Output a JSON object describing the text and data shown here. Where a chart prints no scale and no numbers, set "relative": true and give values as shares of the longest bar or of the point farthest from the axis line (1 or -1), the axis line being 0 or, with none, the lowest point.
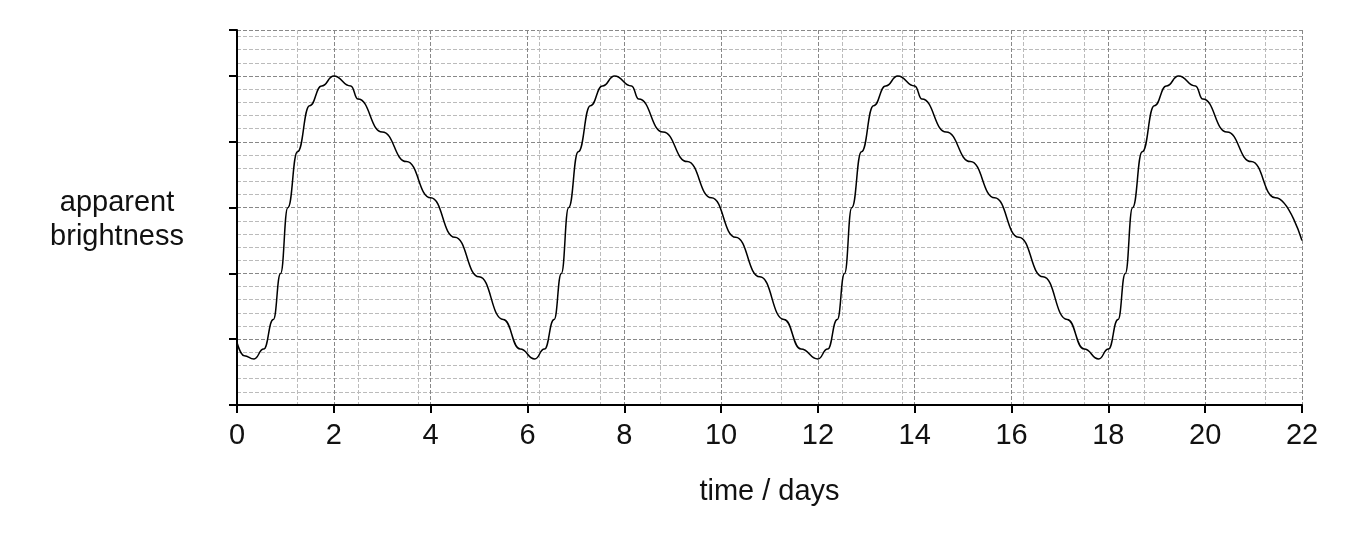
{
  "chart_data": {
    "type": "line",
    "relative": true,
    "xlabel": "time / days",
    "ylabel": "apparent brightness",
    "xlim": [
      0,
      22
    ],
    "xticks": [
      0,
      2,
      4,
      6,
      8,
      10,
      12,
      14,
      16,
      18,
      20,
      22
    ],
    "grid": true,
    "marker": "none",
    "line_style": "solid",
    "series": [
      {
        "color": "#000000",
        "x": [
          0,
          0.15,
          0.35,
          0.55,
          0.75,
          0.9,
          1.05,
          1.25,
          1.5,
          1.75,
          2.0,
          2.35,
          2.5,
          3.0,
          3.5,
          4.0,
          4.5,
          5.0,
          5.5,
          5.85,
          6.15,
          6.35,
          6.55,
          6.7,
          6.85,
          7.05,
          7.3,
          7.55,
          7.8,
          8.15,
          8.3,
          8.8,
          9.3,
          9.8,
          10.3,
          10.8,
          11.3,
          11.65,
          12.0,
          12.2,
          12.4,
          12.55,
          12.7,
          12.9,
          13.15,
          13.4,
          13.65,
          14.0,
          14.15,
          14.65,
          15.15,
          15.65,
          16.15,
          16.65,
          17.15,
          17.5,
          17.8,
          18.0,
          18.2,
          18.35,
          18.5,
          18.7,
          18.95,
          19.2,
          19.45,
          19.8,
          19.95,
          20.45,
          20.95,
          21.45,
          22
        ],
        "values": [
          0.19,
          0.15,
          0.14,
          0.17,
          0.26,
          0.4,
          0.6,
          0.77,
          0.91,
          0.97,
          1,
          0.97,
          0.93,
          0.83,
          0.74,
          0.63,
          0.51,
          0.39,
          0.26,
          0.17,
          0.14,
          0.17,
          0.26,
          0.4,
          0.6,
          0.77,
          0.91,
          0.97,
          1,
          0.97,
          0.93,
          0.83,
          0.74,
          0.63,
          0.51,
          0.39,
          0.26,
          0.17,
          0.14,
          0.17,
          0.26,
          0.4,
          0.6,
          0.77,
          0.91,
          0.97,
          1,
          0.97,
          0.93,
          0.83,
          0.74,
          0.63,
          0.51,
          0.39,
          0.26,
          0.17,
          0.14,
          0.17,
          0.26,
          0.4,
          0.6,
          0.77,
          0.91,
          0.97,
          1,
          0.97,
          0.93,
          0.83,
          0.74,
          0.63,
          0.5
        ]
      }
    ]
  }
}
